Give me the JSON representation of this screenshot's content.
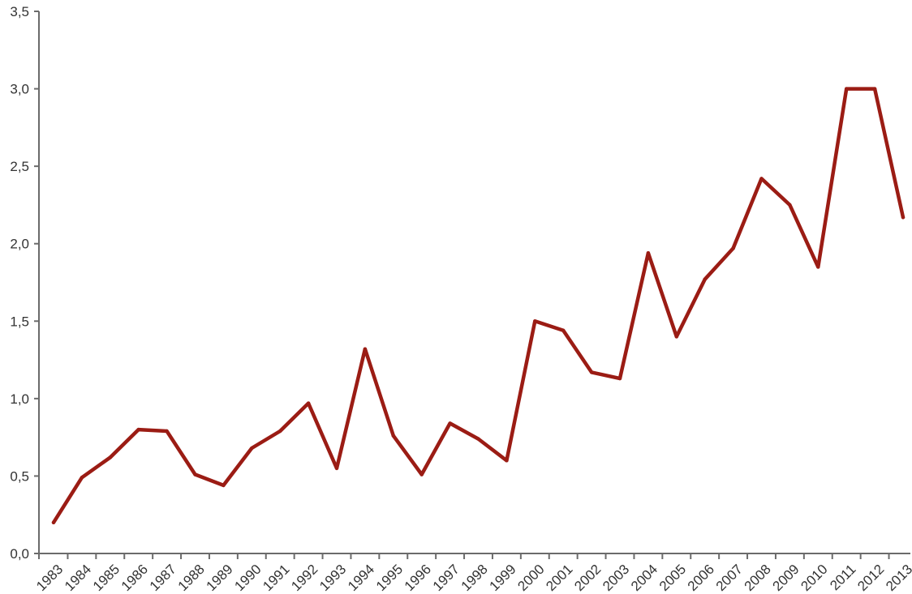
{
  "chart_data": {
    "type": "line",
    "title": "",
    "xlabel": "",
    "ylabel": "",
    "categories": [
      "1983",
      "1984",
      "1985",
      "1986",
      "1987",
      "1988",
      "1989",
      "1990",
      "1991",
      "1992",
      "1993",
      "1994",
      "1995",
      "1996",
      "1997",
      "1998",
      "1999",
      "2000",
      "2001",
      "2002",
      "2003",
      "2004",
      "2005",
      "2006",
      "2007",
      "2008",
      "2009",
      "2010",
      "2011",
      "2012",
      "2013"
    ],
    "series": [
      {
        "values": [
          0.2,
          0.49,
          0.62,
          0.8,
          0.79,
          0.51,
          0.44,
          0.68,
          0.79,
          0.97,
          0.55,
          1.32,
          0.76,
          0.51,
          0.84,
          0.74,
          0.6,
          1.5,
          1.44,
          1.17,
          1.13,
          1.94,
          1.4,
          1.77,
          1.97,
          2.42,
          2.25,
          1.85,
          3.0,
          3.0,
          2.17
        ]
      }
    ],
    "ylim": [
      0,
      3.5
    ],
    "yticks": [
      "0,0",
      "0,5",
      "1,0",
      "1,5",
      "2,0",
      "2,5",
      "3,0",
      "3,5"
    ],
    "grid": false,
    "legend": "none",
    "colors": {
      "line": "#9b1c14",
      "axis": "#6b6b6b",
      "text": "#333333"
    }
  }
}
